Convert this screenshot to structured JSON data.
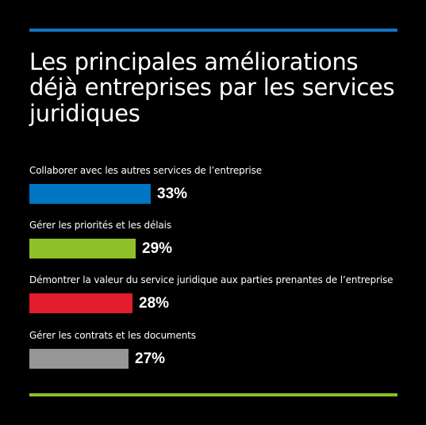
{
  "chart_data": {
    "type": "bar",
    "orientation": "horizontal",
    "title": "Les principales améliorations déjà entreprises par les services juridiques",
    "categories": [
      "Collaborer avec les autres services de l’entreprise",
      "Gérer les priorités et les délais",
      "Démontrer la valeur du service juridique aux parties prenantes de l’entreprise",
      "Gérer les contrats et les documents"
    ],
    "values": [
      33,
      29,
      28,
      27
    ],
    "value_labels": [
      "33%",
      "29%",
      "28%",
      "27%"
    ],
    "colors": [
      "#0075c2",
      "#8dc027",
      "#e31c2d",
      "#969696"
    ],
    "unit": "%",
    "grid": false,
    "legend": "none"
  },
  "decor": {
    "top_rule_color": "#1475c4",
    "bottom_rule_color": "#8dc027"
  }
}
